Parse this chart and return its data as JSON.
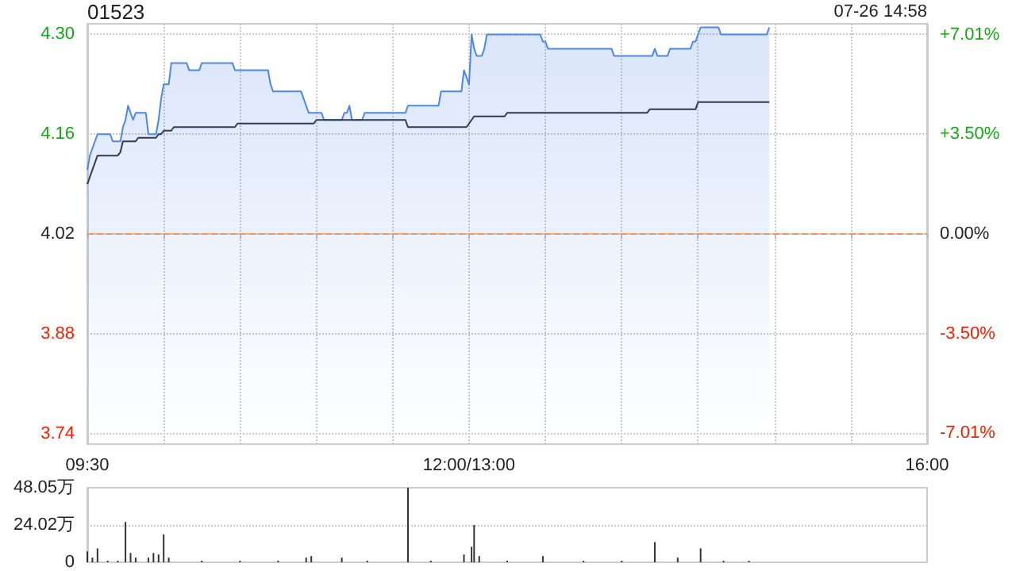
{
  "chart_data": [
    {
      "type": "line",
      "title": "01523",
      "annotations": [
        "07-26 14:58"
      ],
      "categories": [
        "09:30",
        null,
        null,
        null,
        null,
        null,
        null,
        null,
        null,
        null,
        null,
        null,
        null,
        null,
        null,
        null,
        null,
        null,
        null,
        null,
        null,
        null,
        null,
        null,
        null,
        null,
        null,
        null,
        null,
        null,
        null,
        null,
        null,
        null,
        null,
        null,
        null,
        null,
        null,
        null,
        null,
        null,
        null,
        null,
        null,
        null,
        null,
        null,
        null,
        null,
        null,
        null,
        null,
        null,
        null,
        null,
        null,
        null,
        null,
        null,
        null,
        null,
        null,
        null,
        null,
        null,
        null,
        null,
        null,
        null,
        null,
        null,
        null,
        null,
        null,
        null,
        null,
        null,
        null,
        null,
        null,
        null,
        null,
        null,
        null,
        null,
        null,
        null,
        null,
        null,
        null,
        null,
        null,
        null,
        null,
        null,
        null,
        null,
        null,
        null,
        null,
        null,
        null,
        null,
        null,
        null,
        null,
        null,
        null,
        null,
        null,
        null,
        null,
        null,
        null,
        null,
        null,
        null,
        null,
        null,
        null,
        null,
        null,
        null,
        null,
        null,
        null,
        null,
        null,
        null,
        null,
        null,
        null,
        null,
        null,
        null,
        null,
        null,
        null,
        null,
        null,
        null,
        null,
        null,
        null,
        null,
        null,
        null,
        null,
        null,
        "12:00/13:00",
        null,
        null,
        null,
        null,
        null,
        null,
        null,
        null,
        null,
        null,
        null,
        null,
        null,
        null,
        null,
        null,
        null,
        null,
        null,
        null,
        null,
        null,
        null,
        null,
        null,
        null,
        null,
        null,
        null,
        null,
        null,
        null,
        null,
        null,
        null,
        null,
        null,
        null,
        null,
        null,
        null,
        null,
        null,
        null,
        null,
        null,
        null,
        null,
        null,
        null,
        null,
        null,
        null,
        null,
        null,
        null,
        null,
        null,
        null,
        null,
        null,
        null,
        null,
        null,
        null,
        null,
        null,
        null,
        null,
        null,
        null,
        null,
        null,
        null,
        null,
        null,
        null,
        null,
        null,
        null,
        null,
        null,
        null,
        null,
        null,
        null,
        null,
        null,
        null,
        null,
        null,
        null,
        null,
        null,
        null,
        null,
        null,
        null,
        null,
        null,
        null,
        null,
        null,
        null,
        null,
        null,
        null,
        null,
        null,
        null,
        null,
        null,
        null,
        null,
        null,
        null,
        null,
        null,
        null,
        null,
        null,
        null,
        null,
        null,
        null,
        null,
        null,
        null,
        null,
        null,
        null,
        null,
        null,
        null,
        null,
        null,
        null,
        null,
        null,
        null,
        null,
        null,
        null,
        null,
        null,
        null,
        null,
        null,
        null,
        null,
        null,
        null,
        null,
        null,
        null,
        null,
        null,
        null,
        null,
        null,
        null,
        null,
        null,
        null,
        null,
        null,
        null,
        null,
        null,
        null,
        null,
        null,
        null,
        null,
        null,
        null,
        null,
        null,
        null,
        "16:00"
      ],
      "ylim": [
        3.725,
        4.315
      ],
      "yticks": [
        {
          "value": 3.74,
          "label": "3.74"
        },
        {
          "value": 3.88,
          "label": "3.88"
        },
        {
          "value": 4.02,
          "label": "4.02"
        },
        {
          "value": 4.16,
          "label": "4.16"
        },
        {
          "value": 4.3,
          "label": "4.30"
        }
      ],
      "y2lim": [
        -7.39,
        7.39
      ],
      "y2ticks": [
        {
          "value": -7.01,
          "label": "-7.01%"
        },
        {
          "value": -3.5,
          "label": "-3.50%"
        },
        {
          "value": 0,
          "label": "0.00%"
        },
        {
          "value": 3.5,
          "label": "+3.50%"
        },
        {
          "value": 7.01,
          "label": "+7.01%"
        }
      ],
      "grid": true,
      "ref_lines": [
        {
          "axis": "y",
          "value": 4.02,
          "color": "#f0945a",
          "line_style": "dashed"
        }
      ],
      "series": [
        {
          "type": "area",
          "color": "#4f87e8",
          "values": [
            4.11,
            4.13,
            4.14,
            4.15,
            4.16,
            4.16,
            4.16,
            4.16,
            4.16,
            4.16,
            4.15,
            4.15,
            4.15,
            4.15,
            4.17,
            4.18,
            4.2,
            4.19,
            4.18,
            4.19,
            4.19,
            4.19,
            4.19,
            4.19,
            4.16,
            4.16,
            4.16,
            4.16,
            4.18,
            4.21,
            4.23,
            4.23,
            4.23,
            4.26,
            4.26,
            4.26,
            4.26,
            4.26,
            4.26,
            4.26,
            4.25,
            4.25,
            4.25,
            4.25,
            4.25,
            4.26,
            4.26,
            4.26,
            4.26,
            4.26,
            4.26,
            4.26,
            4.26,
            4.26,
            4.26,
            4.26,
            4.26,
            4.26,
            4.25,
            4.25,
            4.25,
            4.25,
            4.25,
            4.25,
            4.25,
            4.25,
            4.25,
            4.25,
            4.25,
            4.25,
            4.25,
            4.25,
            4.23,
            4.22,
            4.22,
            4.22,
            4.22,
            4.22,
            4.22,
            4.22,
            4.22,
            4.22,
            4.22,
            4.22,
            4.22,
            4.21,
            4.2,
            4.19,
            4.19,
            4.19,
            4.19,
            4.19,
            4.19,
            4.18,
            4.18,
            4.18,
            4.18,
            4.18,
            4.18,
            4.18,
            4.18,
            4.19,
            4.19,
            4.2,
            4.18,
            4.18,
            4.18,
            4.18,
            4.18,
            4.19,
            4.19,
            4.19,
            4.19,
            4.19,
            4.19,
            4.19,
            4.19,
            4.19,
            4.19,
            4.19,
            4.19,
            4.19,
            4.19,
            4.19,
            4.19,
            4.19,
            4.2,
            4.2,
            4.2,
            4.2,
            4.2,
            4.2,
            4.2,
            4.2,
            4.2,
            4.2,
            4.2,
            4.2,
            4.2,
            4.22,
            4.22,
            4.22,
            4.22,
            4.22,
            4.22,
            4.22,
            4.22,
            4.22,
            4.25,
            4.24,
            4.23,
            4.3,
            4.28,
            4.27,
            4.27,
            4.27,
            4.28,
            4.3,
            4.3,
            4.3,
            4.3,
            4.3,
            4.3,
            4.3,
            4.3,
            4.3,
            4.3,
            4.3,
            4.3,
            4.3,
            4.3,
            4.3,
            4.3,
            4.3,
            4.3,
            4.3,
            4.3,
            4.3,
            4.3,
            4.29,
            4.29,
            4.28,
            4.28,
            4.28,
            4.28,
            4.28,
            4.28,
            4.28,
            4.28,
            4.28,
            4.28,
            4.28,
            4.28,
            4.28,
            4.28,
            4.28,
            4.28,
            4.28,
            4.28,
            4.28,
            4.28,
            4.28,
            4.28,
            4.28,
            4.28,
            4.28,
            4.28,
            4.27,
            4.27,
            4.27,
            4.27,
            4.27,
            4.27,
            4.27,
            4.27,
            4.27,
            4.27,
            4.27,
            4.27,
            4.27,
            4.27,
            4.27,
            4.27,
            4.28,
            4.27,
            4.27,
            4.27,
            4.27,
            4.27,
            4.28,
            4.28,
            4.28,
            4.28,
            4.28,
            4.28,
            4.28,
            4.28,
            4.28,
            4.29,
            4.29,
            4.3,
            4.31,
            4.31,
            4.31,
            4.31,
            4.31,
            4.31,
            4.31,
            4.31,
            4.3,
            4.3,
            4.3,
            4.3,
            4.3,
            4.3,
            4.3,
            4.3,
            4.3,
            4.3,
            4.3,
            4.3,
            4.3,
            4.3,
            4.3,
            4.3,
            4.3,
            4.3,
            4.3,
            4.31,
            null,
            null,
            null,
            null,
            null,
            null,
            null,
            null,
            null,
            null,
            null,
            null,
            null,
            null,
            null,
            null,
            null,
            null,
            null,
            null,
            null,
            null,
            null,
            null,
            null,
            null,
            null,
            null,
            null,
            null,
            null,
            null,
            null,
            null,
            null,
            null,
            null,
            null,
            null,
            null,
            null,
            null,
            null,
            null,
            null,
            null,
            null,
            null,
            null,
            null,
            null,
            null,
            null,
            null,
            null,
            null,
            null,
            null,
            null,
            null,
            null,
            null
          ]
        },
        {
          "type": "line",
          "color": "#2f3b52",
          "values": [
            4.09,
            4.1,
            4.11,
            4.12,
            4.13,
            4.13,
            4.13,
            4.13,
            4.13,
            4.13,
            4.13,
            4.13,
            4.13,
            4.135,
            4.15,
            4.15,
            4.15,
            4.15,
            4.15,
            4.15,
            4.155,
            4.155,
            4.155,
            4.155,
            4.155,
            4.155,
            4.155,
            4.155,
            4.16,
            4.16,
            4.165,
            4.165,
            4.165,
            4.165,
            4.17,
            4.17,
            4.17,
            4.17,
            4.17,
            4.17,
            4.17,
            4.17,
            4.17,
            4.17,
            4.17,
            4.17,
            4.17,
            4.17,
            4.17,
            4.17,
            4.17,
            4.17,
            4.17,
            4.17,
            4.17,
            4.17,
            4.17,
            4.17,
            4.17,
            4.175,
            4.175,
            4.175,
            4.175,
            4.175,
            4.175,
            4.175,
            4.175,
            4.175,
            4.175,
            4.175,
            4.175,
            4.175,
            4.175,
            4.175,
            4.175,
            4.175,
            4.175,
            4.175,
            4.175,
            4.175,
            4.175,
            4.175,
            4.175,
            4.175,
            4.175,
            4.175,
            4.175,
            4.175,
            4.175,
            4.175,
            4.18,
            4.18,
            4.18,
            4.18,
            4.18,
            4.18,
            4.18,
            4.18,
            4.18,
            4.18,
            4.18,
            4.18,
            4.18,
            4.18,
            4.18,
            4.18,
            4.18,
            4.18,
            4.18,
            4.18,
            4.18,
            4.18,
            4.18,
            4.18,
            4.18,
            4.18,
            4.18,
            4.18,
            4.18,
            4.18,
            4.18,
            4.18,
            4.18,
            4.18,
            4.18,
            4.18,
            4.17,
            4.17,
            4.17,
            4.17,
            4.17,
            4.17,
            4.17,
            4.17,
            4.17,
            4.17,
            4.17,
            4.17,
            4.17,
            4.17,
            4.17,
            4.17,
            4.17,
            4.17,
            4.17,
            4.17,
            4.17,
            4.17,
            4.17,
            4.17,
            4.175,
            4.18,
            4.185,
            4.185,
            4.185,
            4.185,
            4.185,
            4.185,
            4.185,
            4.185,
            4.185,
            4.185,
            4.185,
            4.185,
            4.185,
            4.19,
            4.19,
            4.19,
            4.19,
            4.19,
            4.19,
            4.19,
            4.19,
            4.19,
            4.19,
            4.19,
            4.19,
            4.19,
            4.19,
            4.19,
            4.19,
            4.19,
            4.19,
            4.19,
            4.19,
            4.19,
            4.19,
            4.19,
            4.19,
            4.19,
            4.19,
            4.19,
            4.19,
            4.19,
            4.19,
            4.19,
            4.19,
            4.19,
            4.19,
            4.19,
            4.19,
            4.19,
            4.19,
            4.19,
            4.19,
            4.19,
            4.19,
            4.19,
            4.19,
            4.19,
            4.19,
            4.19,
            4.19,
            4.19,
            4.19,
            4.19,
            4.19,
            4.19,
            4.19,
            4.19,
            4.19,
            4.195,
            4.195,
            4.195,
            4.195,
            4.195,
            4.195,
            4.195,
            4.195,
            4.195,
            4.195,
            4.195,
            4.195,
            4.195,
            4.195,
            4.195,
            4.195,
            4.195,
            4.195,
            4.195,
            4.205,
            4.205,
            4.205,
            4.205,
            4.205,
            4.205,
            4.205,
            4.205,
            4.205,
            4.205,
            4.205,
            4.205,
            4.205,
            4.205,
            4.205,
            4.205,
            4.205,
            4.205,
            4.205,
            4.205,
            4.205,
            4.205,
            4.205,
            4.205,
            4.205,
            4.205,
            4.205,
            4.205,
            4.205,
            null,
            null,
            null,
            null,
            null,
            null,
            null,
            null,
            null,
            null,
            null,
            null,
            null,
            null,
            null,
            null,
            null,
            null,
            null,
            null,
            null,
            null,
            null,
            null,
            null,
            null,
            null,
            null,
            null,
            null,
            null,
            null,
            null,
            null,
            null,
            null,
            null,
            null,
            null,
            null,
            null,
            null,
            null,
            null,
            null,
            null,
            null,
            null,
            null,
            null,
            null,
            null,
            null,
            null,
            null,
            null,
            null,
            null,
            null,
            null,
            null,
            null
          ]
        }
      ]
    },
    {
      "type": "bar",
      "categories": [
        null,
        null,
        null,
        null,
        null,
        null,
        null,
        null,
        null,
        null,
        null,
        null,
        null,
        null,
        null,
        null,
        null,
        null,
        null,
        null,
        null,
        null,
        null,
        null,
        null,
        null,
        null,
        null,
        null,
        null,
        null,
        null,
        null,
        null,
        null,
        null,
        null,
        null,
        null,
        null,
        null,
        null,
        null,
        null,
        null,
        null,
        null,
        null,
        null,
        null,
        null,
        null,
        null,
        null,
        null,
        null,
        null,
        null,
        null,
        null,
        null,
        null,
        null,
        null,
        null,
        null,
        null,
        null,
        null,
        null,
        null,
        null,
        null,
        null,
        null,
        null,
        null,
        null,
        null,
        null,
        null,
        null,
        null,
        null,
        null,
        null,
        null,
        null,
        null,
        null,
        null,
        null,
        null,
        null,
        null,
        null,
        null,
        null,
        null,
        null,
        null,
        null,
        null,
        null,
        null,
        null,
        null,
        null,
        null,
        null,
        null,
        null,
        null,
        null,
        null,
        null,
        null,
        null,
        null,
        null,
        null,
        null,
        null,
        null,
        null,
        null,
        null,
        null,
        null,
        null,
        null,
        null,
        null,
        null,
        null,
        null,
        null,
        null,
        null,
        null,
        null,
        null,
        null,
        null,
        null,
        null,
        null,
        null,
        null,
        null,
        null,
        null,
        null,
        null,
        null,
        null,
        null,
        null,
        null,
        null,
        null,
        null,
        null,
        null,
        null,
        null,
        null,
        null,
        null,
        null,
        null,
        null,
        null,
        null,
        null,
        null,
        null,
        null,
        null,
        null,
        null,
        null,
        null,
        null,
        null,
        null,
        null,
        null,
        null,
        null,
        null,
        null,
        null,
        null,
        null,
        null,
        null,
        null,
        null,
        null,
        null,
        null,
        null,
        null,
        null,
        null,
        null,
        null,
        null,
        null,
        null,
        null,
        null,
        null,
        null,
        null,
        null,
        null,
        null,
        null,
        null,
        null,
        null,
        null,
        null,
        null,
        null,
        null,
        null,
        null,
        null,
        null,
        null,
        null,
        null,
        null,
        null,
        null,
        null,
        null,
        null,
        null,
        null,
        null,
        null,
        null,
        null,
        null,
        null,
        null,
        null,
        null,
        null,
        null,
        null,
        null,
        null,
        null,
        null,
        null,
        null,
        null,
        null,
        null,
        null,
        null,
        null,
        null,
        null,
        null,
        null,
        null,
        null,
        null,
        null,
        null,
        null,
        null,
        null,
        null,
        null,
        null,
        null,
        null,
        null,
        null,
        null,
        null,
        null,
        null,
        null,
        null,
        null,
        null,
        null,
        null,
        null,
        null,
        null,
        null,
        null,
        null,
        null,
        null,
        null,
        null,
        null,
        null,
        null,
        null,
        null,
        null,
        null,
        null,
        null,
        null,
        null,
        null,
        null,
        null,
        null,
        null,
        null,
        null,
        null,
        null,
        null,
        null,
        null,
        null,
        null
      ],
      "ylim": [
        0,
        48.05
      ],
      "yticks": [
        0,
        {
          "value": 24.02,
          "label": "24.02万"
        },
        {
          "value": 48.05,
          "label": "48.05万"
        }
      ],
      "tick_labels": "y",
      "grid": "y",
      "series": [
        {
          "color": "#333333",
          "values": [
            7,
            0,
            3,
            0,
            9,
            0,
            0,
            0,
            1,
            0,
            0,
            0,
            1,
            0,
            0,
            26,
            0,
            6,
            0,
            3,
            0,
            0,
            0,
            0,
            3,
            0,
            6,
            0,
            5,
            0,
            18,
            0,
            3,
            0,
            0,
            0,
            0,
            0,
            0,
            0,
            0,
            0,
            0,
            0,
            0,
            1,
            0,
            0,
            0,
            0,
            0,
            0,
            0,
            0,
            0,
            0,
            0,
            0,
            0,
            0,
            1,
            0,
            0,
            0,
            0,
            0,
            0,
            0,
            0,
            0,
            0,
            0,
            0,
            0,
            0,
            1,
            0,
            0,
            0,
            0,
            0,
            0,
            0,
            0,
            0,
            0,
            3,
            0,
            4,
            0,
            0,
            0,
            0,
            0,
            0,
            0,
            0,
            0,
            0,
            0,
            3,
            0,
            0,
            0,
            0,
            0,
            0,
            0,
            0,
            0,
            1,
            0,
            0,
            0,
            0,
            0,
            0,
            0,
            0,
            0,
            0,
            0,
            0,
            0,
            0,
            0,
            48,
            0,
            0,
            0,
            0,
            0,
            0,
            0,
            0,
            1,
            0,
            0,
            0,
            0,
            0,
            0,
            0,
            0,
            0,
            0,
            0,
            0,
            5,
            0,
            0,
            10,
            24,
            0,
            4,
            0,
            0,
            0,
            0,
            0,
            0,
            0,
            0,
            0,
            0,
            1,
            0,
            0,
            0,
            0,
            0,
            0,
            0,
            0,
            0,
            0,
            0,
            0,
            0,
            4,
            0,
            0,
            0,
            0,
            0,
            0,
            0,
            0,
            0,
            0,
            0,
            0,
            0,
            0,
            0,
            1,
            0,
            0,
            0,
            0,
            0,
            0,
            0,
            0,
            0,
            0,
            0,
            0,
            0,
            0,
            1,
            0,
            0,
            0,
            0,
            0,
            0,
            0,
            0,
            0,
            0,
            0,
            0,
            13,
            0,
            0,
            0,
            0,
            0,
            0,
            0,
            0,
            3,
            0,
            0,
            0,
            0,
            0,
            0,
            0,
            0,
            9,
            0,
            0,
            0,
            0,
            0,
            0,
            0,
            0,
            1,
            0,
            0,
            0,
            0,
            0,
            0,
            0,
            0,
            0,
            1,
            0,
            0,
            0,
            0,
            0,
            0,
            0,
            0,
            null,
            null,
            null,
            null,
            null,
            null,
            null,
            null,
            null,
            null,
            null,
            null,
            null,
            null,
            null,
            null,
            null,
            null,
            null,
            null,
            null,
            null,
            null,
            null,
            null,
            null,
            null,
            null,
            null,
            null,
            null,
            null,
            null,
            null,
            null,
            null,
            null,
            null,
            null,
            null,
            null,
            null,
            null,
            null,
            null,
            null,
            null,
            null,
            null,
            null,
            null,
            null,
            null,
            null,
            null,
            null,
            null,
            null,
            null,
            null,
            null,
            null
          ]
        }
      ]
    }
  ]
}
